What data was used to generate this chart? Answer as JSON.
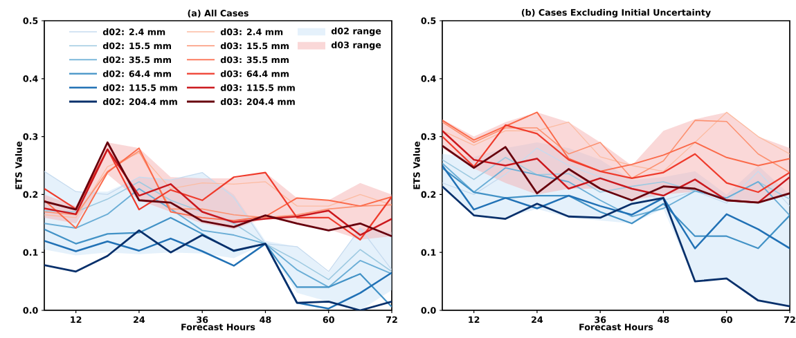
{
  "chart_data": [
    {
      "type": "line",
      "title": "(a) All Cases",
      "xlabel": "Forecast Hours",
      "ylabel": "ETS Value",
      "x": [
        6,
        12,
        18,
        24,
        30,
        36,
        42,
        48,
        54,
        60,
        66,
        72
      ],
      "xlim": [
        6,
        72
      ],
      "xticks": [
        12,
        24,
        36,
        48,
        60,
        72
      ],
      "ylim": [
        0,
        0.5
      ],
      "yticks": [
        {
          "value": 0,
          "label": "0.0"
        },
        0.1,
        0.2,
        0.3,
        0.4,
        0.5
      ],
      "legend": "top left",
      "series": [
        {
          "name": "d02: 2.4 mm",
          "color": "#c6dbef",
          "values": [
            0.24,
            0.205,
            0.2,
            0.23,
            0.225,
            0.238,
            0.195,
            0.115,
            0.11,
            0.067,
            0.142,
            0.07
          ]
        },
        {
          "name": "d02: 15.5 mm",
          "color": "#9ecae1",
          "values": [
            0.172,
            0.17,
            0.192,
            0.222,
            0.19,
            0.17,
            0.15,
            0.115,
            0.086,
            0.053,
            0.105,
            0.067
          ]
        },
        {
          "name": "d02: 35.5 mm",
          "color": "#6baed6",
          "values": [
            0.15,
            0.142,
            0.166,
            0.21,
            0.175,
            0.138,
            0.13,
            0.115,
            0.07,
            0.04,
            0.086,
            0.063
          ]
        },
        {
          "name": "d02: 64.4 mm",
          "color": "#4292c6",
          "values": [
            0.14,
            0.115,
            0.132,
            0.134,
            0.16,
            0.132,
            0.102,
            0.115,
            0.04,
            0.04,
            0.063,
            0.006
          ]
        },
        {
          "name": "d02: 115.5 mm",
          "color": "#2171b5",
          "values": [
            0.12,
            0.102,
            0.119,
            0.103,
            0.124,
            0.102,
            0.077,
            0.115,
            0.013,
            0.003,
            0.03,
            0.065
          ]
        },
        {
          "name": "d02: 204.4 mm",
          "color": "#08306b",
          "values": [
            0.078,
            0.067,
            0.094,
            0.138,
            0.1,
            0.13,
            0.103,
            0.115,
            0.013,
            0.015,
            0.0,
            0.015
          ]
        },
        {
          "name": "d03: 2.4 mm",
          "color": "#fcbba1",
          "values": [
            0.165,
            0.16,
            0.248,
            0.272,
            0.21,
            0.22,
            0.218,
            0.222,
            0.18,
            0.18,
            0.2,
            0.182
          ]
        },
        {
          "name": "d03: 15.5 mm",
          "color": "#fc9272",
          "values": [
            0.17,
            0.165,
            0.24,
            0.275,
            0.175,
            0.175,
            0.165,
            0.16,
            0.165,
            0.175,
            0.18,
            0.182
          ]
        },
        {
          "name": "d03: 35.5 mm",
          "color": "#fb6a4a",
          "values": [
            0.19,
            0.142,
            0.238,
            0.28,
            0.17,
            0.16,
            0.155,
            0.162,
            0.194,
            0.19,
            0.18,
            0.196
          ]
        },
        {
          "name": "d03: 64.4 mm",
          "color": "#ef3b2c",
          "values": [
            0.21,
            0.175,
            0.278,
            0.174,
            0.208,
            0.19,
            0.23,
            0.238,
            0.16,
            0.16,
            0.122,
            0.196
          ]
        },
        {
          "name": "d03: 115.5 mm",
          "color": "#cb181d",
          "values": [
            0.176,
            0.166,
            0.278,
            0.198,
            0.218,
            0.17,
            0.152,
            0.158,
            0.162,
            0.172,
            0.13,
            0.158
          ]
        },
        {
          "name": "d03: 204.4 mm",
          "color": "#67000d",
          "values": [
            0.188,
            0.174,
            0.29,
            0.19,
            0.186,
            0.154,
            0.144,
            0.164,
            0.15,
            0.138,
            0.15,
            0.128
          ]
        },
        {
          "name": "d02 range",
          "type": "area",
          "color": "#c6e0f7",
          "values": [
            null,
            null,
            null,
            null,
            null,
            null,
            null,
            null,
            null,
            null,
            null,
            null
          ],
          "lower": [
            0.105,
            0.095,
            0.1,
            0.097,
            0.1,
            0.098,
            0.09,
            0.115,
            0.03,
            0.015,
            0.0,
            0.035
          ],
          "upper": [
            0.24,
            0.205,
            0.205,
            0.23,
            0.225,
            0.238,
            0.2,
            0.12,
            0.11,
            0.065,
            0.142,
            0.135
          ]
        },
        {
          "name": "d03 range",
          "type": "area",
          "color": "#f4a9a9",
          "values": [
            null,
            null,
            null,
            null,
            null,
            null,
            null,
            null,
            null,
            null,
            null,
            null
          ],
          "lower": [
            0.16,
            0.15,
            0.235,
            0.19,
            0.17,
            0.15,
            0.14,
            0.16,
            0.15,
            0.14,
            0.122,
            0.128
          ],
          "upper": [
            0.2,
            0.18,
            0.29,
            0.28,
            0.23,
            0.228,
            0.228,
            0.238,
            0.194,
            0.19,
            0.22,
            0.2
          ]
        }
      ]
    },
    {
      "type": "line",
      "title": "(b) Cases Excluding Initial Uncertainty",
      "xlabel": "Forecast Hours",
      "ylabel": "ETS Value",
      "x": [
        6,
        12,
        18,
        24,
        30,
        36,
        42,
        48,
        54,
        60,
        66,
        72
      ],
      "xlim": [
        6,
        72
      ],
      "xticks": [
        12,
        24,
        36,
        48,
        60,
        72
      ],
      "ylim": [
        0,
        0.5
      ],
      "yticks": [
        {
          "value": 0,
          "label": "0.0"
        },
        0.1,
        0.2,
        0.3,
        0.4,
        0.5
      ],
      "series": [
        {
          "color": "#c6dbef",
          "values": [
            0.22,
            0.2,
            0.235,
            0.28,
            0.25,
            0.23,
            0.21,
            0.19,
            0.206,
            0.185,
            0.24,
            0.18
          ]
        },
        {
          "color": "#9ecae1",
          "values": [
            0.26,
            0.226,
            0.264,
            0.234,
            0.236,
            0.204,
            0.214,
            0.222,
            0.206,
            0.194,
            0.222,
            0.192
          ]
        },
        {
          "color": "#6baed6",
          "values": [
            0.254,
            0.204,
            0.246,
            0.234,
            0.222,
            0.19,
            0.162,
            0.176,
            0.206,
            0.194,
            0.222,
            0.164
          ]
        },
        {
          "color": "#4292c6",
          "values": [
            0.246,
            0.204,
            0.194,
            0.198,
            0.198,
            0.17,
            0.15,
            0.184,
            0.128,
            0.128,
            0.107,
            0.164
          ]
        },
        {
          "color": "#2171b5",
          "values": [
            0.25,
            0.174,
            0.194,
            0.176,
            0.198,
            0.18,
            0.165,
            0.194,
            0.107,
            0.166,
            0.14,
            0.107
          ]
        },
        {
          "color": "#08306b",
          "values": [
            0.214,
            0.164,
            0.158,
            0.184,
            0.162,
            0.16,
            0.184,
            0.194,
            0.05,
            0.055,
            0.017,
            0.007
          ]
        },
        {
          "color": "#fcbba1",
          "values": [
            0.31,
            0.285,
            0.31,
            0.31,
            0.325,
            0.265,
            0.25,
            0.24,
            0.29,
            0.342,
            0.3,
            0.27
          ]
        },
        {
          "color": "#fc9272",
          "values": [
            0.325,
            0.29,
            0.315,
            0.315,
            0.27,
            0.29,
            0.228,
            0.258,
            0.328,
            0.326,
            0.27,
            0.238
          ]
        },
        {
          "color": "#fb6a4a",
          "values": [
            0.328,
            0.294,
            0.318,
            0.342,
            0.262,
            0.24,
            0.252,
            0.268,
            0.29,
            0.264,
            0.25,
            0.262
          ]
        },
        {
          "color": "#ef3b2c",
          "values": [
            0.3,
            0.248,
            0.32,
            0.305,
            0.26,
            0.24,
            0.228,
            0.238,
            0.27,
            0.22,
            0.204,
            0.238
          ]
        },
        {
          "color": "#cb181d",
          "values": [
            0.31,
            0.26,
            0.25,
            0.262,
            0.21,
            0.228,
            0.21,
            0.198,
            0.226,
            0.19,
            0.186,
            0.23
          ]
        },
        {
          "color": "#67000d",
          "values": [
            0.284,
            0.246,
            0.282,
            0.202,
            0.244,
            0.21,
            0.19,
            0.214,
            0.21,
            0.19,
            0.186,
            0.202
          ]
        },
        {
          "type": "area",
          "color": "#c6e0f7",
          "values": [
            null,
            null,
            null,
            null,
            null,
            null,
            null,
            null,
            null,
            null,
            null,
            null
          ],
          "lower": [
            0.21,
            0.165,
            0.16,
            0.175,
            0.16,
            0.155,
            0.15,
            0.175,
            0.05,
            0.055,
            0.015,
            0.005
          ],
          "upper": [
            0.27,
            0.265,
            0.28,
            0.29,
            0.28,
            0.26,
            0.225,
            0.23,
            0.24,
            0.2,
            0.25,
            0.2
          ]
        },
        {
          "type": "area",
          "color": "#f4a9a9",
          "values": [
            null,
            null,
            null,
            null,
            null,
            null,
            null,
            null,
            null,
            null,
            null,
            null
          ],
          "lower": [
            0.28,
            0.245,
            0.22,
            0.2,
            0.21,
            0.21,
            0.19,
            0.2,
            0.205,
            0.19,
            0.185,
            0.2
          ],
          "upper": [
            0.33,
            0.3,
            0.325,
            0.342,
            0.325,
            0.29,
            0.25,
            0.31,
            0.33,
            0.342,
            0.3,
            0.28
          ]
        }
      ]
    }
  ]
}
